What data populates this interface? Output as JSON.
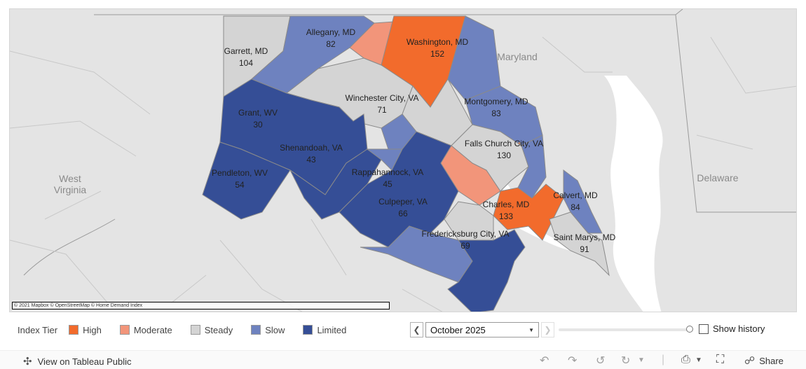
{
  "map": {
    "attribution": "© 2021 Mapbox © OpenStreetMap © Home Demand Index",
    "region_labels": {
      "maryland": "Maryland",
      "west_virginia_1": "West",
      "west_virginia_2": "Virginia",
      "delaware": "Delaware"
    },
    "counties": [
      {
        "key": "allegany",
        "name": "Allegany, MD",
        "value": "82",
        "tier": "slow"
      },
      {
        "key": "garrett",
        "name": "Garrett, MD",
        "value": "104",
        "tier": "steady"
      },
      {
        "key": "washington",
        "name": "Washington, MD",
        "value": "152",
        "tier": "high"
      },
      {
        "key": "winchester",
        "name": "Winchester City, VA",
        "value": "71",
        "tier": "slow"
      },
      {
        "key": "grant",
        "name": "Grant, WV",
        "value": "30",
        "tier": "limited"
      },
      {
        "key": "montgomery",
        "name": "Montgomery, MD",
        "value": "83",
        "tier": "slow"
      },
      {
        "key": "falls_church",
        "name": "Falls Church City, VA",
        "value": "130",
        "tier": "high"
      },
      {
        "key": "shenandoah",
        "name": "Shenandoah, VA",
        "value": "43",
        "tier": "limited"
      },
      {
        "key": "pendleton",
        "name": "Pendleton, WV",
        "value": "54",
        "tier": "limited"
      },
      {
        "key": "rappahannock",
        "name": "Rappahannock, VA",
        "value": "45",
        "tier": "limited"
      },
      {
        "key": "calvert",
        "name": "Calvert, MD",
        "value": "84",
        "tier": "slow"
      },
      {
        "key": "charles",
        "name": "Charles, MD",
        "value": "133",
        "tier": "high"
      },
      {
        "key": "culpeper",
        "name": "Culpeper, VA",
        "value": "66",
        "tier": "limited"
      },
      {
        "key": "saint_marys",
        "name": "Saint Marys, MD",
        "value": "91",
        "tier": "steady"
      },
      {
        "key": "fredericksburg",
        "name": "Fredericksburg City, VA",
        "value": "69",
        "tier": "slow"
      }
    ]
  },
  "legend": {
    "title": "Index Tier",
    "items": [
      {
        "label": "High",
        "color": "#f26b2c"
      },
      {
        "label": "Moderate",
        "color": "#f2957a"
      },
      {
        "label": "Steady",
        "color": "#d4d4d4"
      },
      {
        "label": "Slow",
        "color": "#6e82bf"
      },
      {
        "label": "Limited",
        "color": "#354e96"
      }
    ]
  },
  "controls": {
    "date_value": "October 2025",
    "prev_icon": "chevron-left-icon",
    "next_icon": "chevron-right-icon",
    "show_history_label": "Show history",
    "show_history_checked": false,
    "slider_level": 1.0
  },
  "toolbar": {
    "view_on_label": "View on Tableau Public",
    "share_label": "Share",
    "icons": [
      "undo-icon",
      "redo-icon",
      "revert-icon",
      "refresh-icon",
      "download-icon",
      "fullscreen-icon",
      "share-icon"
    ]
  },
  "colors": {
    "high": "#f26b2c",
    "moderate": "#f2957a",
    "steady": "#d4d4d4",
    "slow": "#6e82bf",
    "limited": "#354e96",
    "basemap": "#e4e4e4",
    "water": "#ffffff"
  }
}
